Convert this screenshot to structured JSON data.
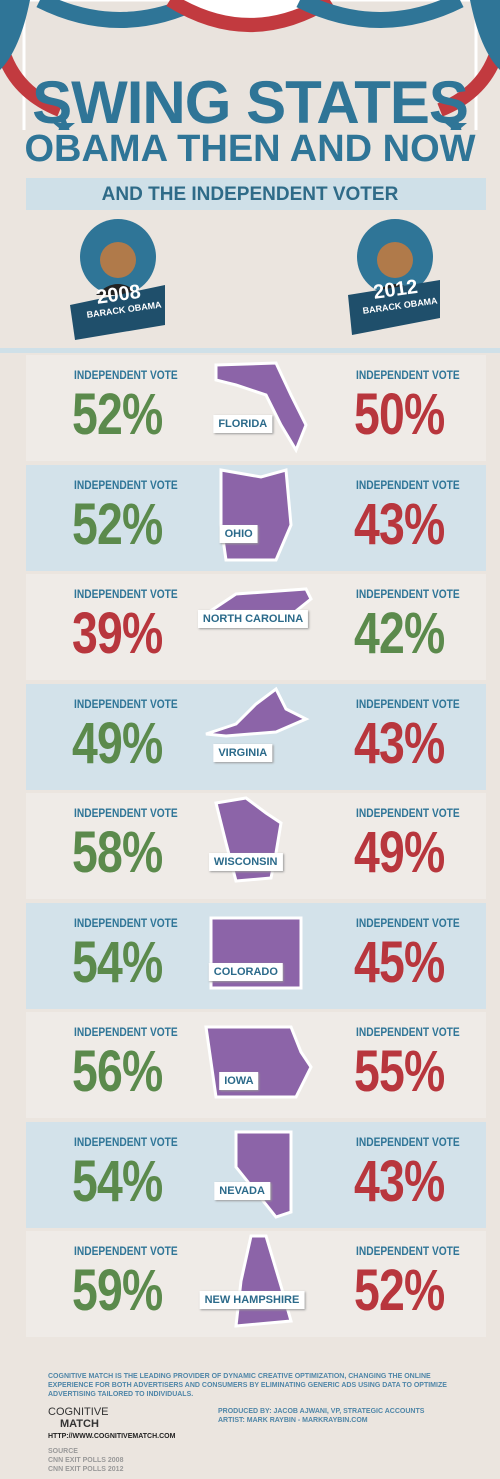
{
  "header": {
    "title_line1": "SWING STATES",
    "title_line2": "OBAMA THEN AND NOW",
    "subtitle": "AND THE INDEPENDENT VOTER",
    "left_badge": {
      "year": "2008",
      "name": "BARACK OBAMA"
    },
    "right_badge": {
      "year": "2012",
      "name": "BARACK OBAMA"
    }
  },
  "states": {
    "vote_label": "INDEPENDENT VOTE",
    "higher_color": "#5b8a4c",
    "lower_color": "#b8363d",
    "rows": [
      {
        "name": "FLORIDA",
        "vote_2008": "52%",
        "vote_2012": "50%",
        "higher": "2008"
      },
      {
        "name": "OHIO",
        "vote_2008": "52%",
        "vote_2012": "43%",
        "higher": "2008"
      },
      {
        "name": "NORTH CAROLINA",
        "vote_2008": "39%",
        "vote_2012": "42%",
        "higher": "2012"
      },
      {
        "name": "VIRGINIA",
        "vote_2008": "49%",
        "vote_2012": "43%",
        "higher": "2008"
      },
      {
        "name": "WISCONSIN",
        "vote_2008": "58%",
        "vote_2012": "49%",
        "higher": "2008"
      },
      {
        "name": "COLORADO",
        "vote_2008": "54%",
        "vote_2012": "45%",
        "higher": "2008"
      },
      {
        "name": "IOWA",
        "vote_2008": "56%",
        "vote_2012": "55%",
        "higher": "2008"
      },
      {
        "name": "NEVADA",
        "vote_2008": "54%",
        "vote_2012": "43%",
        "higher": "2008"
      },
      {
        "name": "NEW HAMPSHIRE",
        "vote_2008": "59%",
        "vote_2012": "52%",
        "higher": "2008"
      }
    ]
  },
  "footer": {
    "about": "COGNITIVE MATCH IS THE LEADING PROVIDER OF DYNAMIC CREATIVE OPTIMIZATION, CHANGING THE ONLINE EXPERIENCE FOR BOTH ADVERTISERS AND CONSUMERS BY ELIMINATING GENERIC ADS USING DATA TO OPTIMIZE ADVERTISING TAILORED TO INDIVIDUALS.",
    "logo_line1": "COGNITIVE",
    "logo_line2": "MATCH",
    "url": "HTTP://WWW.COGNITIVEMATCH.COM",
    "produced_by": "PRODUCED BY: JACOB AJWANI, VP, STRATEGIC ACCOUNTS",
    "artist": "ARTIST: MARK RAYBIN - MARKRAYBIN.COM",
    "source_label": "SOURCE",
    "source_1": "CNN EXIT POLLS 2008",
    "source_2": "CNN EXIT POLLS 2012"
  }
}
